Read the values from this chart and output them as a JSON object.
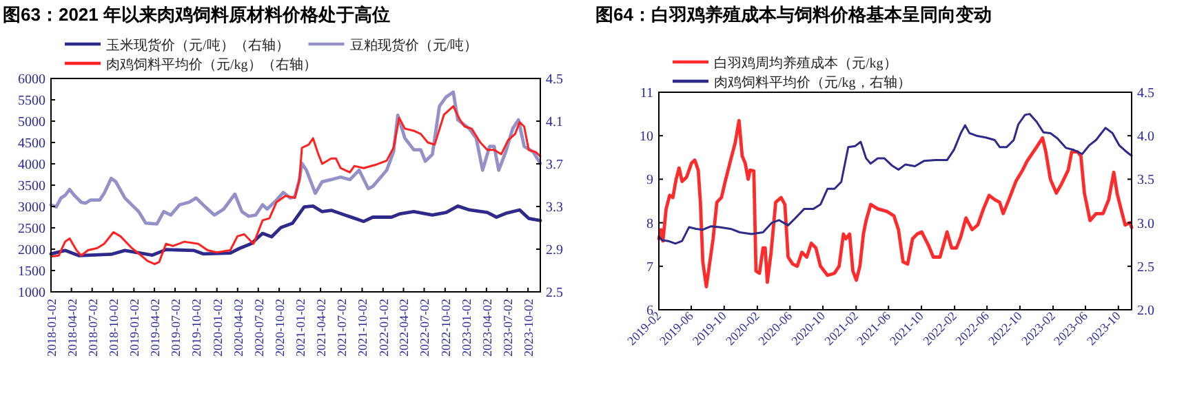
{
  "chart_data": [
    {
      "type": "line",
      "title": "图63：2021 年以来肉鸡饲料原材料价格处于高位",
      "legend": "top",
      "xlim": [
        "2018-01-02",
        "2023-11-25"
      ],
      "xticks": [
        "2018-01-02",
        "2018-04-02",
        "2018-07-02",
        "2018-10-02",
        "2019-01-02",
        "2019-04-02",
        "2019-07-02",
        "2019-10-02",
        "2020-01-02",
        "2020-04-02",
        "2020-07-02",
        "2020-10-02",
        "2021-01-02",
        "2021-04-02",
        "2021-07-02",
        "2021-10-02",
        "2022-01-02",
        "2022-04-02",
        "2022-07-02",
        "2022-10-02",
        "2023-01-02",
        "2023-04-02",
        "2023-07-02",
        "2023-10-02"
      ],
      "ylim": [
        1000,
        6000
      ],
      "yticks": [
        1000,
        1500,
        2000,
        2500,
        3000,
        3500,
        4000,
        4500,
        5000,
        5500,
        6000
      ],
      "y2lim": [
        2.5,
        4.5
      ],
      "y2ticks": [
        2.5,
        2.9,
        3.3,
        3.7,
        4.1,
        4.5
      ],
      "series": [
        {
          "name": "玉米现货价（元/吨）（右轴）",
          "color": "#2e2a8c",
          "x": [
            "2018-01-02",
            "2018-03-05",
            "2018-05-04",
            "2018-09-24",
            "2018-11-23",
            "2019-03-23",
            "2019-05-23",
            "2019-09-22",
            "2019-11-02",
            "2020-03-01",
            "2020-04-11",
            "2020-06-01",
            "2020-07-21",
            "2020-08-30",
            "2020-10-10",
            "2020-11-30",
            "2021-01-20",
            "2021-02-28",
            "2021-04-09",
            "2021-05-19",
            "2021-07-19",
            "2021-10-09",
            "2021-11-18",
            "2022-02-08",
            "2022-03-18",
            "2022-05-17",
            "2022-08-07",
            "2022-10-07",
            "2022-11-27",
            "2023-01-17",
            "2023-04-06",
            "2023-05-16",
            "2023-06-26",
            "2023-08-26",
            "2023-10-05",
            "2023-11-25"
          ],
          "values": [
            1890,
            1970,
            1850,
            1880,
            1970,
            1860,
            1990,
            1970,
            1890,
            1910,
            2020,
            2130,
            2370,
            2290,
            2510,
            2610,
            2990,
            3010,
            2880,
            2910,
            2800,
            2650,
            2750,
            2750,
            2830,
            2880,
            2800,
            2860,
            3010,
            2920,
            2860,
            2750,
            2840,
            2920,
            2720,
            2670
          ]
        },
        {
          "name": "豆粕现货价（元/吨）",
          "color": "#9490c8",
          "x": [
            "2018-01-02",
            "2018-01-25",
            "2018-02-15",
            "2018-03-05",
            "2018-03-25",
            "2018-04-15",
            "2018-05-15",
            "2018-06-04",
            "2018-06-24",
            "2018-08-04",
            "2018-08-24",
            "2018-09-24",
            "2018-10-14",
            "2018-11-23",
            "2019-01-23",
            "2019-02-23",
            "2019-04-13",
            "2019-05-13",
            "2019-06-13",
            "2019-07-22",
            "2019-09-02",
            "2019-10-02",
            "2019-11-12",
            "2019-12-22",
            "2020-02-01",
            "2020-03-21",
            "2020-04-21",
            "2020-05-21",
            "2020-06-21",
            "2020-07-21",
            "2020-08-10",
            "2020-09-20",
            "2020-10-20",
            "2020-11-20",
            "2020-12-10",
            "2020-12-30",
            "2021-01-10",
            "2021-01-30",
            "2021-03-10",
            "2021-04-09",
            "2021-05-19",
            "2021-06-29",
            "2021-08-09",
            "2021-09-19",
            "2021-10-29",
            "2021-11-18",
            "2022-01-18",
            "2022-02-17",
            "2022-03-08",
            "2022-04-08",
            "2022-05-17",
            "2022-06-17",
            "2022-07-07",
            "2022-08-07",
            "2022-09-07",
            "2022-10-07",
            "2022-11-07",
            "2022-11-27",
            "2023-01-17",
            "2023-02-16",
            "2023-03-16",
            "2023-04-16",
            "2023-05-06",
            "2023-05-26",
            "2023-06-26",
            "2023-07-26",
            "2023-08-21",
            "2023-09-15",
            "2023-10-25",
            "2023-11-25"
          ],
          "values": [
            3040,
            2990,
            3200,
            3260,
            3400,
            3260,
            3100,
            3080,
            3150,
            3150,
            3310,
            3660,
            3580,
            3200,
            2880,
            2610,
            2590,
            2880,
            2800,
            3040,
            3100,
            3200,
            2990,
            2800,
            2940,
            3290,
            2880,
            2770,
            2800,
            3040,
            2940,
            3150,
            3330,
            3200,
            3230,
            3630,
            4010,
            3850,
            3310,
            3580,
            3630,
            3690,
            3630,
            3850,
            3420,
            3470,
            3850,
            4280,
            5140,
            4600,
            4330,
            4330,
            4060,
            4220,
            5350,
            5570,
            5680,
            5030,
            4820,
            4600,
            3850,
            4410,
            4410,
            3850,
            4280,
            4820,
            5030,
            4410,
            4280,
            4010
          ]
        },
        {
          "name": "肉鸡饲料平均价（元/kg）（右轴）",
          "color": "#ff2020",
          "axis": "y2",
          "x": [
            "2018-01-02",
            "2018-02-05",
            "2018-03-05",
            "2018-03-25",
            "2018-04-24",
            "2018-05-15",
            "2018-06-14",
            "2018-07-24",
            "2018-08-24",
            "2018-10-04",
            "2018-11-04",
            "2018-12-24",
            "2019-02-03",
            "2019-03-03",
            "2019-04-03",
            "2019-04-23",
            "2019-05-23",
            "2019-06-23",
            "2019-08-12",
            "2019-10-12",
            "2019-11-22",
            "2020-01-02",
            "2020-03-01",
            "2020-04-01",
            "2020-05-01",
            "2020-06-11",
            "2020-07-21",
            "2020-08-20",
            "2020-09-20",
            "2020-10-30",
            "2020-12-10",
            "2020-12-30",
            "2021-01-10",
            "2021-02-09",
            "2021-02-28",
            "2021-03-20",
            "2021-04-09",
            "2021-05-19",
            "2021-06-09",
            "2021-06-29",
            "2021-08-09",
            "2021-08-29",
            "2021-10-09",
            "2021-11-29",
            "2022-01-18",
            "2022-02-17",
            "2022-03-14",
            "2022-04-08",
            "2022-05-17",
            "2022-06-17",
            "2022-07-18",
            "2022-08-17",
            "2022-09-27",
            "2022-11-07",
            "2022-12-07",
            "2022-12-27",
            "2023-01-27",
            "2023-03-06",
            "2023-04-06",
            "2023-05-06",
            "2023-06-06",
            "2023-07-06",
            "2023-08-06",
            "2023-08-26",
            "2023-09-15",
            "2023-10-05",
            "2023-11-05",
            "2023-11-25"
          ],
          "values": [
            2.83,
            2.84,
            2.97,
            3.0,
            2.89,
            2.84,
            2.89,
            2.91,
            2.95,
            3.06,
            3.02,
            2.91,
            2.84,
            2.79,
            2.76,
            2.78,
            2.95,
            2.93,
            2.97,
            2.95,
            2.89,
            2.87,
            2.89,
            3.02,
            3.04,
            2.95,
            3.17,
            3.19,
            3.34,
            3.4,
            3.38,
            3.55,
            3.85,
            3.88,
            3.94,
            3.81,
            3.7,
            3.75,
            3.75,
            3.66,
            3.62,
            3.68,
            3.66,
            3.69,
            3.73,
            3.85,
            4.13,
            4.03,
            4.01,
            3.98,
            3.9,
            3.88,
            4.16,
            4.24,
            4.11,
            4.05,
            4.03,
            3.9,
            3.83,
            3.83,
            3.79,
            3.92,
            3.98,
            4.09,
            4.05,
            3.83,
            3.81,
            3.77
          ]
        }
      ]
    },
    {
      "type": "line",
      "title": "图64：白羽鸡养殖成本与饲料价格基本呈同向变动",
      "legend": "top",
      "xlim": [
        "2019-02-01",
        "2023-11-19"
      ],
      "xticks": [
        "2019-02",
        "2019-06",
        "2019-10",
        "2020-02",
        "2020-06",
        "2020-10",
        "2021-02",
        "2021-06",
        "2021-10",
        "2022-02",
        "2022-06",
        "2022-10",
        "2023-02",
        "2023-06",
        "2023-10"
      ],
      "ylim": [
        6,
        11
      ],
      "yticks": [
        6,
        7,
        8,
        9,
        10,
        11
      ],
      "y2lim": [
        2.0,
        4.5
      ],
      "y2ticks": [
        {
          "value": 2.0,
          "label": "2.0"
        },
        2.5,
        {
          "value": 3.0,
          "label": "3.0"
        },
        3.5,
        {
          "value": 4.0,
          "label": "4.0"
        },
        4.5
      ],
      "series": [
        {
          "name": "白羽鸡周均养殖成本（元/kg）",
          "color": "#ff2a2a",
          "x": [
            "2019-02-01",
            "2019-02-09",
            "2019-02-16",
            "2019-02-28",
            "2019-03-13",
            "2019-03-25",
            "2019-04-06",
            "2019-04-17",
            "2019-04-28",
            "2019-05-15",
            "2019-06-02",
            "2019-06-14",
            "2019-06-27",
            "2019-07-05",
            "2019-07-14",
            "2019-07-27",
            "2019-08-09",
            "2019-08-21",
            "2019-09-04",
            "2019-09-21",
            "2019-10-05",
            "2019-10-25",
            "2019-11-11",
            "2019-11-25",
            "2019-12-07",
            "2019-12-18",
            "2019-12-29",
            "2020-01-05",
            "2020-01-19",
            "2020-01-27",
            "2020-02-09",
            "2020-02-22",
            "2020-03-01",
            "2020-03-09",
            "2020-03-23",
            "2020-04-09",
            "2020-04-29",
            "2020-05-13",
            "2020-05-25",
            "2020-06-11",
            "2020-06-28",
            "2020-07-15",
            "2020-08-02",
            "2020-08-19",
            "2020-09-05",
            "2020-09-22",
            "2020-10-18",
            "2020-11-13",
            "2020-11-30",
            "2020-12-16",
            "2020-12-25",
            "2021-01-08",
            "2021-01-20",
            "2021-02-02",
            "2021-02-15",
            "2021-02-28",
            "2021-03-10",
            "2021-03-27",
            "2021-04-22",
            "2021-05-26",
            "2021-06-21",
            "2021-07-08",
            "2021-07-25",
            "2021-08-11",
            "2021-08-29",
            "2021-09-15",
            "2021-10-02",
            "2021-10-28",
            "2021-11-14",
            "2021-12-09",
            "2022-01-04",
            "2022-01-21",
            "2022-02-08",
            "2022-02-24",
            "2022-03-15",
            "2022-04-07",
            "2022-04-28",
            "2022-05-19",
            "2022-06-09",
            "2022-06-30",
            "2022-07-18",
            "2022-07-31",
            "2022-08-21",
            "2022-09-16",
            "2022-10-11",
            "2022-10-28",
            "2022-12-02",
            "2022-12-24",
            "2023-01-05",
            "2023-01-22",
            "2023-02-13",
            "2023-03-04",
            "2023-03-29",
            "2023-04-11",
            "2023-05-03",
            "2023-05-15",
            "2023-05-28",
            "2023-06-18",
            "2023-07-10",
            "2023-08-05",
            "2023-08-26",
            "2023-09-14",
            "2023-09-26",
            "2023-10-13",
            "2023-10-26",
            "2023-11-13",
            "2023-11-19"
          ],
          "values": [
            7.63,
            7.84,
            7.58,
            8.32,
            8.63,
            8.58,
            9.0,
            9.26,
            8.95,
            9.05,
            9.37,
            9.44,
            9.21,
            8.47,
            7.1,
            6.53,
            7.1,
            7.63,
            8.47,
            8.58,
            8.95,
            9.44,
            9.84,
            10.35,
            9.53,
            9.37,
            9.0,
            9.21,
            9.19,
            6.89,
            6.84,
            7.42,
            7.42,
            6.63,
            7.32,
            8.47,
            8.58,
            8.42,
            7.21,
            7.05,
            7.0,
            7.32,
            7.21,
            7.53,
            7.42,
            7.0,
            6.79,
            6.84,
            7.0,
            7.74,
            7.63,
            7.74,
            6.89,
            6.68,
            7.0,
            7.74,
            8.05,
            8.42,
            8.32,
            8.26,
            8.16,
            7.84,
            7.1,
            7.05,
            7.63,
            7.74,
            7.79,
            7.47,
            7.21,
            7.21,
            7.79,
            7.42,
            7.42,
            7.68,
            8.11,
            7.84,
            7.95,
            8.32,
            8.63,
            8.53,
            8.47,
            8.21,
            8.53,
            8.95,
            9.21,
            9.42,
            9.74,
            9.95,
            9.63,
            9.0,
            8.68,
            8.89,
            9.21,
            9.63,
            9.63,
            9.53,
            8.68,
            8.05,
            8.21,
            8.21,
            8.53,
            9.16,
            8.68,
            8.26,
            7.95,
            8.0,
            7.89
          ]
        },
        {
          "name": "肉鸡饲料平均价（元/kg，右轴）",
          "color": "#2e2a8c",
          "axis": "y2",
          "x": [
            "2019-02-01",
            "2019-02-13",
            "2019-03-08",
            "2019-04-03",
            "2019-04-28",
            "2019-05-24",
            "2019-06-19",
            "2019-07-14",
            "2019-08-14",
            "2019-09-13",
            "2019-10-25",
            "2019-11-28",
            "2020-01-10",
            "2020-02-22",
            "2020-03-26",
            "2020-04-21",
            "2020-05-25",
            "2020-06-20",
            "2020-07-24",
            "2020-08-27",
            "2020-09-22",
            "2020-10-18",
            "2020-11-13",
            "2020-12-08",
            "2021-01-03",
            "2021-01-28",
            "2021-02-18",
            "2021-03-10",
            "2021-03-27",
            "2021-04-22",
            "2021-05-17",
            "2021-06-13",
            "2021-07-08",
            "2021-08-03",
            "2021-09-07",
            "2021-10-10",
            "2021-11-22",
            "2022-01-04",
            "2022-01-30",
            "2022-02-24",
            "2022-03-12",
            "2022-03-28",
            "2022-04-23",
            "2022-05-27",
            "2022-06-30",
            "2022-07-18",
            "2022-08-13",
            "2022-09-08",
            "2022-09-25",
            "2022-10-20",
            "2022-11-06",
            "2022-12-02",
            "2022-12-27",
            "2023-01-22",
            "2023-02-17",
            "2023-03-21",
            "2023-04-16",
            "2023-05-20",
            "2023-06-15",
            "2023-07-10",
            "2023-08-14",
            "2023-09-09",
            "2023-10-04",
            "2023-10-29",
            "2023-11-19"
          ],
          "values": [
            2.84,
            2.8,
            2.79,
            2.76,
            2.79,
            2.95,
            2.93,
            2.92,
            2.96,
            2.95,
            2.93,
            2.89,
            2.87,
            2.89,
            3.0,
            3.03,
            2.97,
            3.05,
            3.16,
            3.16,
            3.21,
            3.39,
            3.39,
            3.47,
            3.87,
            3.88,
            3.93,
            3.74,
            3.68,
            3.74,
            3.74,
            3.66,
            3.61,
            3.67,
            3.65,
            3.71,
            3.72,
            3.72,
            3.84,
            4.03,
            4.12,
            4.03,
            4.0,
            3.98,
            3.95,
            3.87,
            3.87,
            3.95,
            4.13,
            4.24,
            4.25,
            4.16,
            4.04,
            4.03,
            3.97,
            3.86,
            3.84,
            3.79,
            3.89,
            3.95,
            4.09,
            4.03,
            3.89,
            3.82,
            3.77
          ]
        }
      ]
    }
  ]
}
